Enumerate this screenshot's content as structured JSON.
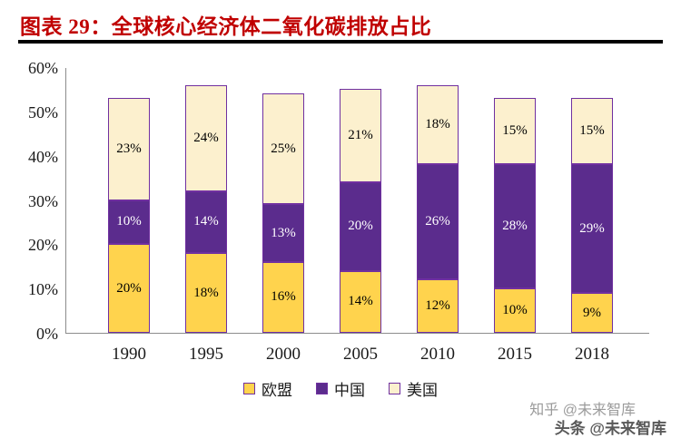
{
  "header": {
    "title": "图表 29：全球核心经济体二氧化碳排放占比",
    "title_color": "#c00000"
  },
  "chart_data": {
    "type": "bar",
    "stacked": true,
    "title": "全球核心经济体二氧化碳排放占比",
    "xlabel": "",
    "ylabel": "",
    "categories": [
      "1990",
      "1995",
      "2000",
      "2005",
      "2010",
      "2015",
      "2018"
    ],
    "series": [
      {
        "name": "欧盟",
        "color": "#ffd34d",
        "label_color": "#000000",
        "values": [
          20,
          18,
          16,
          14,
          12,
          10,
          9
        ]
      },
      {
        "name": "中国",
        "color": "#5b2c8d",
        "label_color": "#ffffff",
        "values": [
          10,
          14,
          13,
          20,
          26,
          28,
          29
        ]
      },
      {
        "name": "美国",
        "color": "#fcf0ce",
        "label_color": "#000000",
        "values": [
          23,
          24,
          25,
          21,
          18,
          15,
          15
        ]
      }
    ],
    "y_ticks": [
      "0%",
      "10%",
      "20%",
      "30%",
      "40%",
      "50%",
      "60%"
    ],
    "ylim": [
      0,
      60
    ],
    "grid": false,
    "bar_border_color": "#7030a0",
    "legend_position": "bottom"
  },
  "watermarks": [
    {
      "text": "知乎 @未来智库"
    },
    {
      "text": "头条 @未来智库"
    }
  ]
}
